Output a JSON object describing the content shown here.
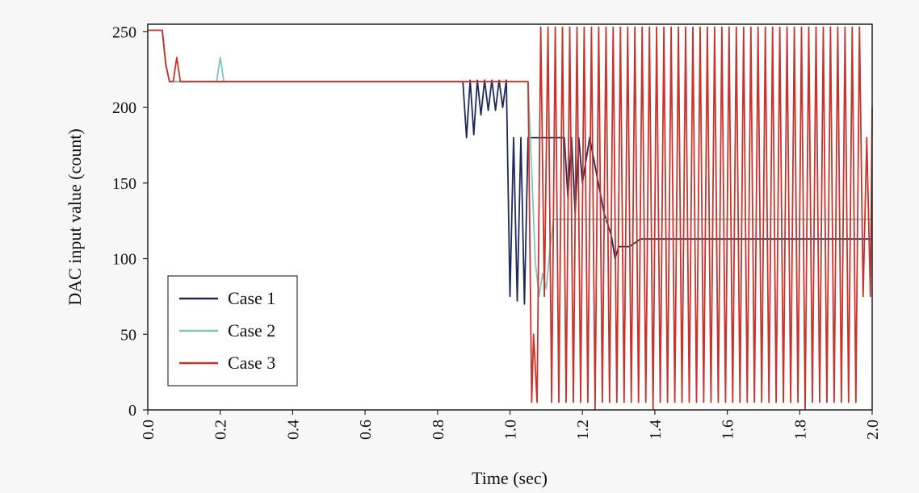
{
  "chart_data": {
    "type": "line",
    "xlabel": "Time (sec)",
    "ylabel": "DAC input value (count)",
    "xlim": [
      0,
      2
    ],
    "ylim": [
      0,
      255
    ],
    "xticks": [
      0.0,
      0.2,
      0.4,
      0.6,
      0.8,
      1.0,
      1.2,
      1.4,
      1.6,
      1.8,
      2.0
    ],
    "xtick_labels": [
      "0.0",
      "0.2",
      "0.4",
      "0.6",
      "0.8",
      "1.0",
      "1.2",
      "1.4",
      "1.6",
      "1.8",
      "2.0"
    ],
    "yticks": [
      0,
      50,
      100,
      150,
      200,
      250
    ],
    "ytick_labels": [
      "0",
      "50",
      "100",
      "150",
      "200",
      "250"
    ],
    "grid": false,
    "legend_position": "bottom-left",
    "series": [
      {
        "name": "Case 1",
        "color": "#1f2a5c",
        "x": [
          0,
          0.04,
          0.05,
          0.06,
          0.1,
          0.3,
          0.5,
          0.7,
          0.87,
          0.88,
          0.89,
          0.9,
          0.91,
          0.92,
          0.93,
          0.94,
          0.95,
          0.96,
          0.97,
          0.98,
          0.99,
          1.0,
          1.01,
          1.02,
          1.03,
          1.04,
          1.05,
          1.06,
          1.15,
          1.16,
          1.17,
          1.18,
          1.19,
          1.2,
          1.22,
          1.24,
          1.26,
          1.28,
          1.29,
          1.3,
          1.33,
          1.36,
          1.6,
          1.8,
          2.0
        ],
        "y": [
          251,
          251,
          228,
          217,
          217,
          217,
          217,
          217,
          217,
          180,
          218,
          182,
          218,
          195,
          218,
          198,
          218,
          198,
          218,
          200,
          218,
          75,
          180,
          72,
          180,
          70,
          180,
          180,
          180,
          140,
          180,
          130,
          180,
          150,
          180,
          155,
          130,
          115,
          100,
          108,
          108,
          113,
          113,
          113,
          113
        ]
      },
      {
        "name": "Case 2",
        "color": "#7fc7b6",
        "x": [
          0,
          0.04,
          0.05,
          0.06,
          0.19,
          0.2,
          0.21,
          0.3,
          0.5,
          0.7,
          0.9,
          1.0,
          1.04,
          1.05,
          1.07,
          1.08,
          1.09,
          1.1,
          1.11,
          1.12,
          1.13,
          1.2,
          1.4,
          1.6,
          1.8,
          2.0
        ],
        "y": [
          251,
          251,
          228,
          217,
          217,
          233,
          217,
          217,
          217,
          217,
          217,
          217,
          217,
          217,
          98,
          75,
          90,
          80,
          105,
          126,
          126,
          126,
          126,
          126,
          126,
          126
        ]
      },
      {
        "name": "Case 3",
        "color": "#c9332c",
        "x": [
          0,
          0.04,
          0.05,
          0.06,
          0.07,
          0.08,
          0.09,
          0.1,
          0.3,
          0.5,
          0.7,
          0.9,
          1.0,
          1.05,
          1.06,
          1.065,
          1.075,
          1.085,
          1.095,
          1.105,
          1.115,
          1.125,
          1.135,
          1.145,
          1.155,
          1.165,
          1.175,
          1.185,
          1.195,
          1.205,
          1.215,
          1.225,
          1.235,
          1.245,
          1.255,
          1.265,
          1.275,
          1.285,
          1.295,
          1.305,
          1.315,
          1.325,
          1.335,
          1.345,
          1.355,
          1.365,
          1.375,
          1.385,
          1.395,
          1.405,
          1.415,
          1.425,
          1.435,
          1.445,
          1.455,
          1.465,
          1.475,
          1.485,
          1.495,
          1.505,
          1.515,
          1.525,
          1.535,
          1.545,
          1.555,
          1.565,
          1.575,
          1.585,
          1.595,
          1.605,
          1.615,
          1.625,
          1.635,
          1.645,
          1.655,
          1.665,
          1.675,
          1.685,
          1.695,
          1.705,
          1.715,
          1.725,
          1.735,
          1.745,
          1.755,
          1.765,
          1.775,
          1.785,
          1.795,
          1.805,
          1.815,
          1.825,
          1.835,
          1.845,
          1.855,
          1.865,
          1.875,
          1.885,
          1.895,
          1.905,
          1.915,
          1.925,
          1.935,
          1.945,
          1.955,
          1.965,
          1.975,
          1.985,
          1.995,
          2.0
        ],
        "y": [
          251,
          251,
          228,
          217,
          217,
          233,
          217,
          217,
          217,
          217,
          217,
          217,
          217,
          217,
          5,
          50,
          5,
          253,
          75,
          253,
          5,
          253,
          5,
          253,
          5,
          253,
          5,
          253,
          5,
          253,
          5,
          253,
          0,
          253,
          5,
          253,
          5,
          253,
          5,
          253,
          5,
          253,
          5,
          253,
          5,
          253,
          5,
          253,
          0,
          253,
          5,
          253,
          5,
          253,
          5,
          253,
          5,
          253,
          5,
          253,
          5,
          253,
          5,
          253,
          5,
          253,
          5,
          253,
          5,
          253,
          5,
          253,
          5,
          253,
          5,
          253,
          5,
          253,
          5,
          253,
          5,
          253,
          5,
          253,
          5,
          253,
          5,
          253,
          5,
          253,
          0,
          253,
          5,
          253,
          5,
          253,
          5,
          253,
          5,
          253,
          5,
          253,
          5,
          253,
          5,
          253,
          75,
          180,
          75,
          200
        ]
      }
    ]
  }
}
